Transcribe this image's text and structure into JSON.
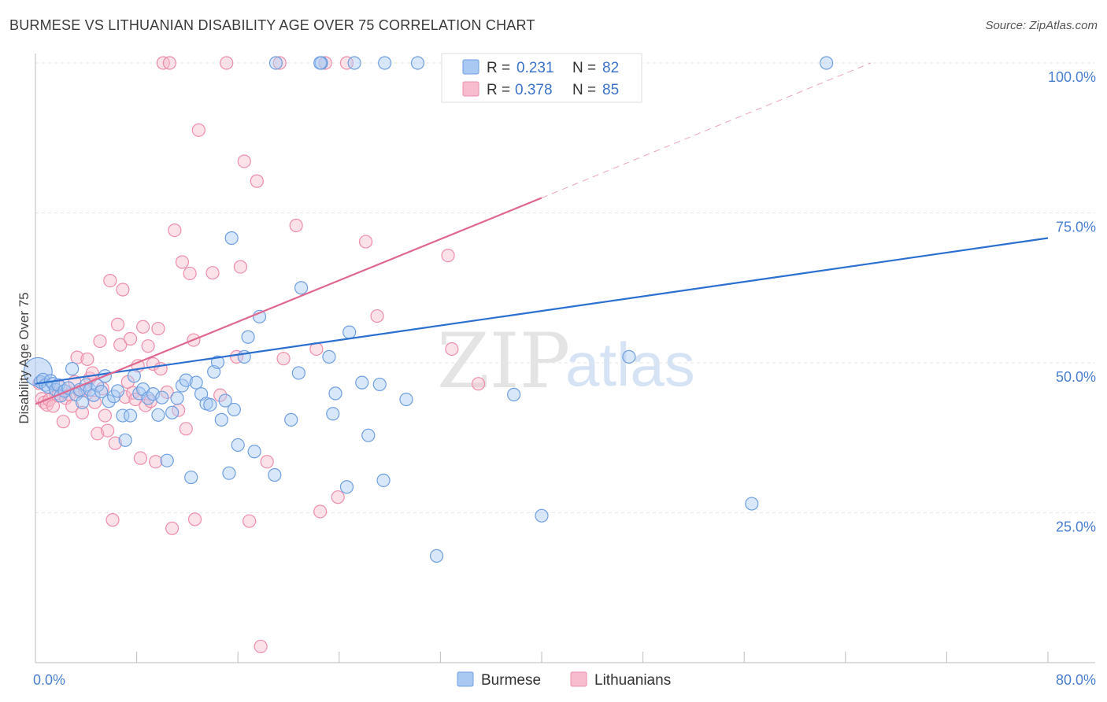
{
  "header": {
    "title": "BURMESE VS LITHUANIAN DISABILITY AGE OVER 75 CORRELATION CHART",
    "source": "Source: ZipAtlas.com"
  },
  "watermark": {
    "zip": "ZIP",
    "atlas": "atlas"
  },
  "legend": {
    "r_label": "R =",
    "n_label": "N =",
    "burmese": {
      "r": "0.231",
      "n": "82"
    },
    "lithuanians": {
      "r": "0.378",
      "n": "85"
    }
  },
  "bottom_legend": {
    "burmese": "Burmese",
    "lithuanians": "Lithuanians"
  },
  "colors": {
    "burmese_fill": "#a9c9f2",
    "burmese_stroke": "#6f9fe0",
    "burmese_line": "#2b6fcf",
    "lith_fill": "#f7bccd",
    "lith_stroke": "#ee8eab",
    "lith_line": "#e06890"
  },
  "chart_data": {
    "type": "scatter",
    "title": "BURMESE VS LITHUANIAN DISABILITY AGE OVER 75 CORRELATION CHART",
    "xlabel": "",
    "ylabel": "Disability Age Over 75",
    "xlim": [
      0,
      80
    ],
    "ylim": [
      0,
      105
    ],
    "x_tick_labels": [
      "0.0%",
      "80.0%"
    ],
    "y_ticks": [
      25,
      50,
      75,
      100
    ],
    "y_tick_labels": [
      "25.0%",
      "50.0%",
      "75.0%",
      "100.0%"
    ],
    "grid": true,
    "series": [
      {
        "name": "Burmese",
        "r": 0.231,
        "n": 82,
        "trend": {
          "x": [
            0,
            80
          ],
          "y": [
            46.5,
            70.8
          ]
        },
        "points": [
          [
            0.2,
            48.5
          ],
          [
            0.4,
            46.8
          ],
          [
            0.6,
            47.2
          ],
          [
            0.8,
            46.3
          ],
          [
            1.0,
            46.0
          ],
          [
            1.2,
            47.0
          ],
          [
            1.4,
            46.5
          ],
          [
            1.6,
            45.5
          ],
          [
            1.8,
            46.3
          ],
          [
            2.0,
            44.5
          ],
          [
            2.3,
            45.3
          ],
          [
            2.6,
            45.8
          ],
          [
            2.9,
            49.0
          ],
          [
            3.2,
            44.7
          ],
          [
            3.5,
            45.5
          ],
          [
            3.7,
            43.4
          ],
          [
            4.0,
            46.3
          ],
          [
            4.3,
            45.5
          ],
          [
            4.6,
            44.6
          ],
          [
            4.9,
            46.2
          ],
          [
            5.2,
            45.2
          ],
          [
            5.5,
            47.8
          ],
          [
            5.8,
            43.6
          ],
          [
            6.2,
            44.4
          ],
          [
            6.5,
            45.3
          ],
          [
            6.9,
            41.2
          ],
          [
            7.1,
            37.1
          ],
          [
            7.5,
            41.2
          ],
          [
            7.8,
            47.8
          ],
          [
            8.2,
            44.9
          ],
          [
            8.5,
            45.6
          ],
          [
            8.9,
            44.1
          ],
          [
            9.3,
            44.8
          ],
          [
            9.7,
            41.3
          ],
          [
            10.0,
            44.2
          ],
          [
            10.4,
            33.7
          ],
          [
            10.8,
            41.7
          ],
          [
            11.2,
            44.1
          ],
          [
            11.6,
            46.2
          ],
          [
            11.9,
            47.1
          ],
          [
            12.3,
            30.9
          ],
          [
            12.7,
            46.7
          ],
          [
            13.1,
            44.8
          ],
          [
            13.5,
            43.2
          ],
          [
            13.8,
            43.0
          ],
          [
            14.1,
            48.5
          ],
          [
            14.4,
            50.1
          ],
          [
            14.7,
            40.5
          ],
          [
            15.0,
            43.7
          ],
          [
            15.3,
            31.6
          ],
          [
            15.5,
            70.8
          ],
          [
            15.7,
            42.2
          ],
          [
            16.0,
            36.3
          ],
          [
            16.5,
            51.0
          ],
          [
            16.8,
            54.3
          ],
          [
            17.3,
            35.2
          ],
          [
            17.7,
            57.7
          ],
          [
            18.9,
            31.3
          ],
          [
            19.0,
            100.0
          ],
          [
            20.2,
            40.5
          ],
          [
            20.8,
            48.3
          ],
          [
            21.0,
            62.5
          ],
          [
            22.6,
            100.0
          ],
          [
            22.5,
            100.0
          ],
          [
            23.2,
            51.0
          ],
          [
            23.5,
            41.5
          ],
          [
            23.7,
            44.9
          ],
          [
            24.6,
            29.3
          ],
          [
            24.8,
            55.1
          ],
          [
            25.2,
            100.0
          ],
          [
            25.8,
            46.7
          ],
          [
            26.3,
            37.9
          ],
          [
            27.2,
            46.4
          ],
          [
            27.5,
            30.4
          ],
          [
            27.6,
            100.0
          ],
          [
            29.3,
            43.9
          ],
          [
            30.2,
            100.0
          ],
          [
            31.7,
            17.8
          ],
          [
            37.8,
            44.7
          ],
          [
            40.0,
            24.5
          ],
          [
            46.9,
            51.0
          ],
          [
            56.6,
            26.5
          ],
          [
            62.5,
            100.0
          ]
        ]
      },
      {
        "name": "Lithuanians",
        "r": 0.378,
        "n": 85,
        "trend": {
          "x": [
            0,
            40
          ],
          "y": [
            43.1,
            77.5
          ]
        },
        "trend_extension": {
          "x": [
            40,
            66
          ],
          "y": [
            77.5,
            100
          ]
        },
        "points": [
          [
            0.3,
            46.6
          ],
          [
            0.5,
            44.0
          ],
          [
            0.7,
            43.4
          ],
          [
            0.9,
            43.0
          ],
          [
            1.1,
            43.8
          ],
          [
            1.4,
            42.8
          ],
          [
            1.6,
            44.9
          ],
          [
            1.8,
            44.5
          ],
          [
            2.0,
            45.9
          ],
          [
            2.2,
            40.2
          ],
          [
            2.4,
            44.1
          ],
          [
            2.7,
            44.7
          ],
          [
            2.9,
            42.8
          ],
          [
            3.1,
            46.8
          ],
          [
            3.3,
            50.9
          ],
          [
            3.5,
            45.2
          ],
          [
            3.7,
            41.7
          ],
          [
            3.9,
            45.4
          ],
          [
            4.1,
            50.6
          ],
          [
            4.3,
            47.4
          ],
          [
            4.5,
            48.3
          ],
          [
            4.7,
            43.4
          ],
          [
            4.9,
            38.2
          ],
          [
            5.1,
            53.6
          ],
          [
            5.3,
            45.7
          ],
          [
            5.5,
            41.2
          ],
          [
            5.7,
            38.7
          ],
          [
            5.9,
            63.7
          ],
          [
            6.1,
            23.8
          ],
          [
            6.3,
            36.6
          ],
          [
            6.5,
            56.4
          ],
          [
            6.7,
            53.0
          ],
          [
            6.9,
            62.2
          ],
          [
            7.1,
            44.3
          ],
          [
            7.3,
            46.8
          ],
          [
            7.5,
            54.0
          ],
          [
            7.7,
            45.0
          ],
          [
            7.9,
            43.9
          ],
          [
            8.1,
            49.5
          ],
          [
            8.3,
            34.1
          ],
          [
            8.5,
            56.0
          ],
          [
            8.7,
            42.9
          ],
          [
            8.9,
            52.8
          ],
          [
            9.1,
            43.6
          ],
          [
            9.3,
            49.8
          ],
          [
            9.5,
            33.5
          ],
          [
            9.7,
            55.7
          ],
          [
            9.9,
            49.0
          ],
          [
            10.1,
            100.0
          ],
          [
            10.4,
            45.1
          ],
          [
            10.6,
            100.0
          ],
          [
            10.8,
            22.4
          ],
          [
            11.0,
            72.1
          ],
          [
            11.3,
            42.1
          ],
          [
            11.6,
            66.8
          ],
          [
            11.9,
            39.0
          ],
          [
            12.2,
            64.9
          ],
          [
            12.5,
            53.8
          ],
          [
            12.6,
            23.9
          ],
          [
            12.9,
            88.8
          ],
          [
            14.0,
            65.0
          ],
          [
            14.6,
            44.6
          ],
          [
            15.1,
            100.0
          ],
          [
            15.9,
            51.0
          ],
          [
            16.2,
            66.0
          ],
          [
            16.5,
            83.6
          ],
          [
            16.9,
            23.6
          ],
          [
            17.5,
            80.3
          ],
          [
            17.8,
            2.7
          ],
          [
            18.3,
            33.5
          ],
          [
            19.3,
            100.0
          ],
          [
            19.6,
            50.7
          ],
          [
            20.6,
            72.9
          ],
          [
            22.2,
            52.3
          ],
          [
            22.5,
            25.2
          ],
          [
            22.9,
            100.0
          ],
          [
            23.9,
            27.6
          ],
          [
            24.6,
            100.0
          ],
          [
            26.1,
            70.2
          ],
          [
            27.0,
            57.8
          ],
          [
            32.6,
            67.9
          ],
          [
            32.9,
            52.3
          ],
          [
            33.5,
            100.0
          ],
          [
            35.0,
            46.5
          ],
          [
            38.5,
            100.0
          ]
        ]
      }
    ]
  }
}
